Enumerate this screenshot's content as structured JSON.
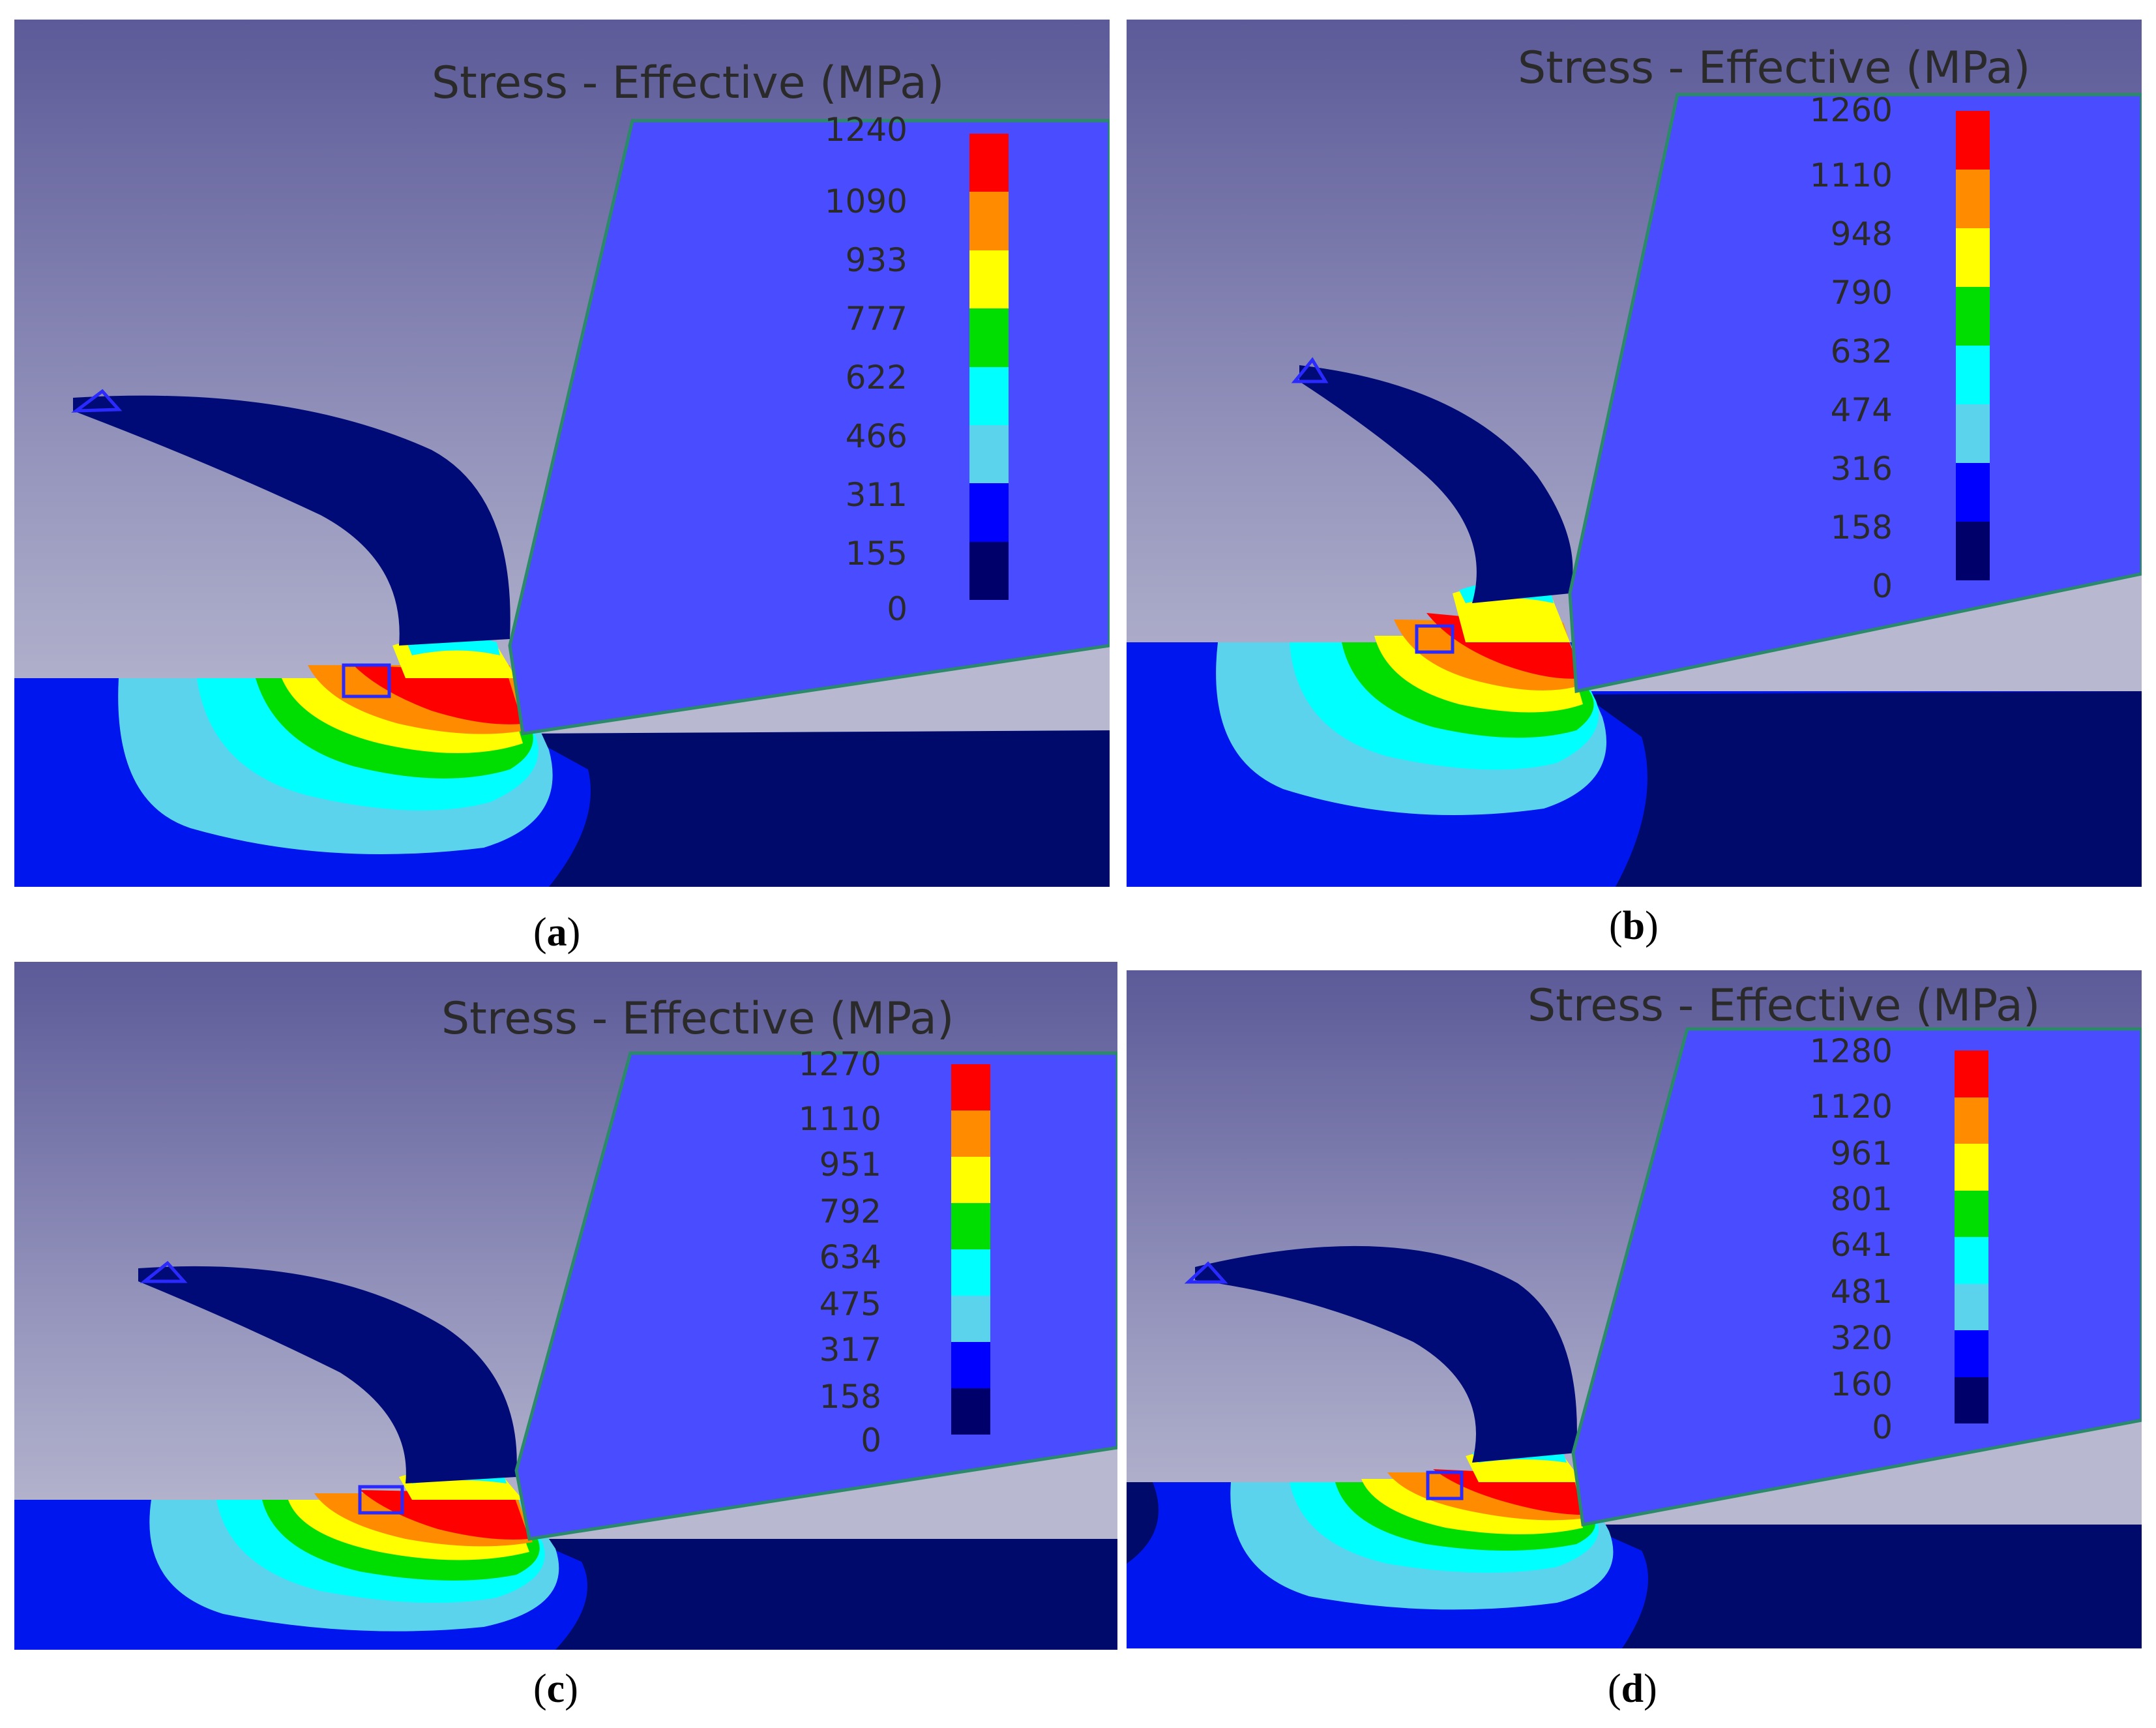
{
  "figure": {
    "legend_title": "Stress - Effective (MPa)",
    "colorbar_colors": [
      "#ff0000",
      "#ff8c00",
      "#ffff00",
      "#00dd00",
      "#00ffff",
      "#5bd3ec",
      "#0000ff",
      "#00006b"
    ],
    "colors": {
      "background_top": "#5c5a98",
      "background_bottom": "#c4c4d6",
      "tool": "#4a4cff",
      "tool_edge": "#2a8a6a",
      "chip": "#000b78",
      "workpiece_blue": "#0016ee",
      "workpiece_dark": "#000a6a"
    },
    "panels": [
      {
        "label": "a",
        "ticks": [
          "1240",
          "1090",
          "933",
          "777",
          "622",
          "466",
          "311",
          "155",
          "0"
        ]
      },
      {
        "label": "b",
        "ticks": [
          "1260",
          "1110",
          "948",
          "790",
          "632",
          "474",
          "316",
          "158",
          "0"
        ]
      },
      {
        "label": "c",
        "ticks": [
          "1270",
          "1110",
          "951",
          "792",
          "634",
          "475",
          "317",
          "158",
          "0"
        ]
      },
      {
        "label": "d",
        "ticks": [
          "1280",
          "1120",
          "961",
          "801",
          "641",
          "481",
          "320",
          "160",
          "0"
        ]
      }
    ]
  }
}
